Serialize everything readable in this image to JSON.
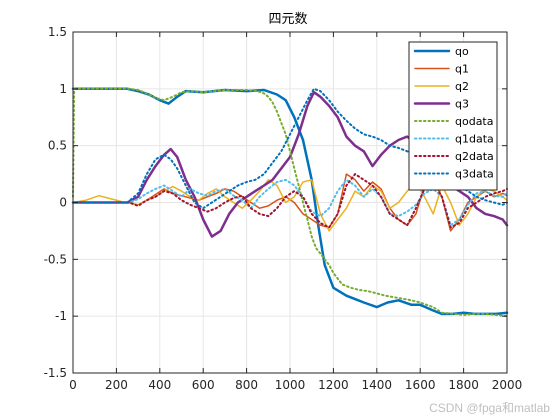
{
  "chart_data": {
    "type": "line",
    "title": "四元数",
    "xlabel": "",
    "ylabel": "",
    "xlim": [
      0,
      2000
    ],
    "ylim": [
      -1.5,
      1.5
    ],
    "xticks": [
      0,
      200,
      400,
      600,
      800,
      1000,
      1200,
      1400,
      1600,
      1800,
      2000
    ],
    "yticks": [
      1.5,
      1,
      0.5,
      0,
      -0.5,
      -1,
      -1.5
    ],
    "xtick_labels": [
      "0",
      "200",
      "400",
      "600",
      "800",
      "1000",
      "1200",
      "1400",
      "1600",
      "1800",
      "2000"
    ],
    "ytick_labels": [
      "1.5",
      "1",
      "0.5",
      "0",
      "-0.5",
      "-1",
      "-1.5"
    ],
    "grid": true,
    "legend_position": "top-right",
    "series": [
      {
        "name": "qo",
        "color": "#0072BD",
        "style": "solid",
        "width": 2.5,
        "x": [
          0,
          250,
          300,
          350,
          400,
          440,
          480,
          520,
          600,
          700,
          800,
          880,
          940,
          980,
          1020,
          1060,
          1100,
          1130,
          1160,
          1200,
          1260,
          1300,
          1340,
          1400,
          1450,
          1500,
          1560,
          1600,
          1660,
          1700,
          1750,
          1800,
          1850,
          1900,
          1950,
          2000
        ],
        "y": [
          1,
          1,
          0.98,
          0.95,
          0.9,
          0.87,
          0.93,
          0.98,
          0.97,
          0.99,
          0.98,
          0.99,
          0.95,
          0.9,
          0.75,
          0.55,
          0.2,
          -0.2,
          -0.55,
          -0.75,
          -0.82,
          -0.85,
          -0.88,
          -0.92,
          -0.88,
          -0.86,
          -0.9,
          -0.9,
          -0.95,
          -0.98,
          -0.98,
          -0.97,
          -0.98,
          -0.98,
          -0.98,
          -0.97
        ]
      },
      {
        "name": "q1",
        "color": "#D95319",
        "style": "solid",
        "width": 1.5,
        "x": [
          0,
          260,
          300,
          340,
          380,
          420,
          460,
          500,
          540,
          580,
          620,
          660,
          700,
          740,
          780,
          820,
          860,
          900,
          940,
          980,
          1020,
          1060,
          1100,
          1140,
          1180,
          1220,
          1260,
          1300,
          1340,
          1380,
          1420,
          1460,
          1500,
          1540,
          1580,
          1620,
          1660,
          1700,
          1740,
          1780,
          1820,
          1860,
          1900,
          1940,
          1980,
          2000
        ],
        "y": [
          0,
          0,
          -0.02,
          0.02,
          0.07,
          0.12,
          0.08,
          0.06,
          0.04,
          0.02,
          0.05,
          0.08,
          0.12,
          0.1,
          0.05,
          0.0,
          -0.05,
          -0.03,
          0.02,
          0.05,
          0.0,
          -0.1,
          -0.15,
          -0.2,
          -0.22,
          -0.1,
          0.25,
          0.2,
          0.1,
          0.18,
          0.12,
          -0.05,
          -0.15,
          -0.2,
          -0.1,
          0.15,
          0.2,
          0.05,
          -0.25,
          -0.15,
          0.0,
          0.05,
          0.1,
          0.05,
          0.08,
          0.06
        ]
      },
      {
        "name": "q2",
        "color": "#EDB120",
        "style": "solid",
        "width": 1.5,
        "x": [
          0,
          60,
          120,
          180,
          240,
          300,
          340,
          380,
          420,
          460,
          500,
          540,
          580,
          620,
          660,
          700,
          740,
          780,
          820,
          860,
          900,
          940,
          980,
          1020,
          1060,
          1100,
          1140,
          1180,
          1220,
          1260,
          1300,
          1340,
          1380,
          1420,
          1460,
          1500,
          1540,
          1580,
          1620,
          1660,
          1700,
          1740,
          1780,
          1820,
          1860,
          1900,
          1940,
          1980,
          2000
        ],
        "y": [
          0,
          0.02,
          0.06,
          0.03,
          0.0,
          -0.02,
          0.02,
          0.05,
          0.1,
          0.14,
          0.1,
          0.05,
          0.02,
          0.08,
          0.12,
          0.05,
          0.0,
          -0.05,
          0.02,
          0.1,
          0.2,
          0.15,
          0.0,
          0.05,
          0.18,
          0.2,
          -0.1,
          -0.25,
          -0.15,
          -0.05,
          0.1,
          0.05,
          0.15,
          0.1,
          -0.05,
          0.0,
          0.1,
          0.18,
          0.05,
          -0.1,
          0.15,
          0.0,
          -0.2,
          -0.1,
          0.05,
          0.12,
          0.1,
          0.05,
          0.02
        ]
      },
      {
        "name": "q3",
        "color": "#7E2F8E",
        "style": "solid",
        "width": 2.5,
        "x": [
          0,
          250,
          300,
          340,
          380,
          420,
          450,
          480,
          520,
          560,
          600,
          640,
          680,
          720,
          760,
          800,
          840,
          880,
          920,
          960,
          1000,
          1040,
          1080,
          1110,
          1140,
          1180,
          1220,
          1260,
          1300,
          1340,
          1380,
          1420,
          1460,
          1500,
          1540,
          1580,
          1620,
          1660,
          1700,
          1740,
          1780,
          1820,
          1860,
          1900,
          1940,
          1980,
          2000
        ],
        "y": [
          0,
          0,
          0.05,
          0.2,
          0.32,
          0.42,
          0.47,
          0.4,
          0.2,
          0.05,
          -0.15,
          -0.3,
          -0.25,
          -0.1,
          0.0,
          0.05,
          0.1,
          0.15,
          0.2,
          0.3,
          0.4,
          0.6,
          0.85,
          0.97,
          0.93,
          0.85,
          0.75,
          0.58,
          0.5,
          0.45,
          0.32,
          0.42,
          0.5,
          0.55,
          0.58,
          0.52,
          0.45,
          0.35,
          0.2,
          0.15,
          0.1,
          0.05,
          -0.05,
          -0.1,
          -0.12,
          -0.15,
          -0.2
        ]
      },
      {
        "name": "qodata",
        "color": "#77AC30",
        "style": "dotted",
        "width": 2,
        "x": [
          0,
          5,
          260,
          300,
          340,
          380,
          420,
          460,
          500,
          540,
          600,
          700,
          800,
          850,
          880,
          900,
          920,
          940,
          960,
          980,
          1000,
          1020,
          1040,
          1060,
          1080,
          1100,
          1120,
          1140,
          1160,
          1180,
          1200,
          1240,
          1280,
          1320,
          1360,
          1400,
          1440,
          1500,
          1560,
          1600,
          1660,
          1700,
          1760,
          1800,
          1850,
          1900,
          1950,
          2000
        ],
        "y": [
          0.05,
          1,
          1,
          0.99,
          0.96,
          0.92,
          0.9,
          0.93,
          0.97,
          0.98,
          0.97,
          0.99,
          0.99,
          0.98,
          0.96,
          0.93,
          0.88,
          0.8,
          0.7,
          0.6,
          0.45,
          0.3,
          0.15,
          0.0,
          -0.15,
          -0.3,
          -0.4,
          -0.45,
          -0.5,
          -0.55,
          -0.62,
          -0.72,
          -0.75,
          -0.77,
          -0.78,
          -0.8,
          -0.82,
          -0.84,
          -0.86,
          -0.88,
          -0.92,
          -0.97,
          -0.98,
          -0.99,
          -0.98,
          -0.98,
          -0.99,
          -1.0
        ]
      },
      {
        "name": "q1data",
        "color": "#4DBEEE",
        "style": "dotted",
        "width": 2,
        "x": [
          0,
          260,
          300,
          340,
          380,
          420,
          460,
          500,
          540,
          580,
          620,
          660,
          700,
          740,
          780,
          820,
          860,
          900,
          940,
          980,
          1020,
          1060,
          1100,
          1140,
          1180,
          1220,
          1260,
          1300,
          1340,
          1380,
          1420,
          1460,
          1500,
          1540,
          1580,
          1620,
          1660,
          1700,
          1740,
          1780,
          1820,
          1860,
          1900,
          1940,
          1980,
          2000
        ],
        "y": [
          0,
          0,
          0.03,
          0.08,
          0.12,
          0.15,
          0.1,
          0.05,
          0.12,
          0.08,
          0.06,
          0.1,
          0.12,
          0.06,
          0.02,
          -0.05,
          0.05,
          0.12,
          0.18,
          0.2,
          0.15,
          0.05,
          -0.08,
          -0.12,
          -0.05,
          0.1,
          0.2,
          0.15,
          0.05,
          0.12,
          0.05,
          -0.1,
          -0.12,
          -0.08,
          -0.02,
          0.08,
          0.12,
          0.05,
          -0.2,
          -0.15,
          -0.02,
          0.08,
          0.1,
          0.06,
          0.05,
          0.08
        ]
      },
      {
        "name": "q2data",
        "color": "#A2142F",
        "style": "dotted",
        "width": 2,
        "x": [
          0,
          260,
          300,
          340,
          380,
          420,
          460,
          500,
          540,
          580,
          620,
          660,
          700,
          740,
          780,
          820,
          860,
          900,
          940,
          980,
          1020,
          1060,
          1100,
          1140,
          1180,
          1220,
          1260,
          1300,
          1340,
          1380,
          1420,
          1460,
          1500,
          1540,
          1580,
          1620,
          1660,
          1700,
          1740,
          1780,
          1820,
          1860,
          1900,
          1940,
          1980,
          2000
        ],
        "y": [
          0,
          0,
          -0.03,
          0.02,
          0.05,
          0.1,
          0.08,
          0.02,
          -0.02,
          -0.05,
          -0.08,
          -0.05,
          0.0,
          0.04,
          0.06,
          -0.05,
          -0.1,
          -0.12,
          -0.05,
          0.05,
          0.1,
          0.05,
          -0.1,
          -0.18,
          -0.22,
          -0.1,
          0.15,
          0.25,
          0.2,
          0.15,
          0.05,
          -0.1,
          -0.15,
          -0.2,
          -0.05,
          0.12,
          0.18,
          0.05,
          -0.22,
          -0.18,
          -0.05,
          0.0,
          0.05,
          0.08,
          0.1,
          0.12
        ]
      },
      {
        "name": "q3data",
        "color": "#0072BD",
        "style": "dotted",
        "width": 2,
        "x": [
          0,
          250,
          300,
          340,
          380,
          420,
          450,
          480,
          520,
          560,
          600,
          640,
          680,
          720,
          760,
          800,
          840,
          880,
          920,
          960,
          1000,
          1040,
          1080,
          1110,
          1140,
          1180,
          1220,
          1260,
          1300,
          1340,
          1380,
          1420,
          1460,
          1500,
          1540,
          1580,
          1620,
          1660,
          1700,
          1740,
          1780,
          1820,
          1860,
          1900,
          1940,
          1980,
          2000
        ],
        "y": [
          0,
          0,
          0.08,
          0.25,
          0.38,
          0.42,
          0.38,
          0.3,
          0.15,
          0.0,
          -0.05,
          0.0,
          0.05,
          0.1,
          0.15,
          0.18,
          0.2,
          0.25,
          0.35,
          0.45,
          0.6,
          0.75,
          0.9,
          1.0,
          0.98,
          0.9,
          0.8,
          0.72,
          0.65,
          0.6,
          0.58,
          0.55,
          0.5,
          0.48,
          0.45,
          0.42,
          0.4,
          0.35,
          0.28,
          0.2,
          0.15,
          0.1,
          0.05,
          0.02,
          0.0,
          -0.02,
          0.0
        ]
      }
    ]
  },
  "watermark_text": "CSDN @fpga和matlab"
}
